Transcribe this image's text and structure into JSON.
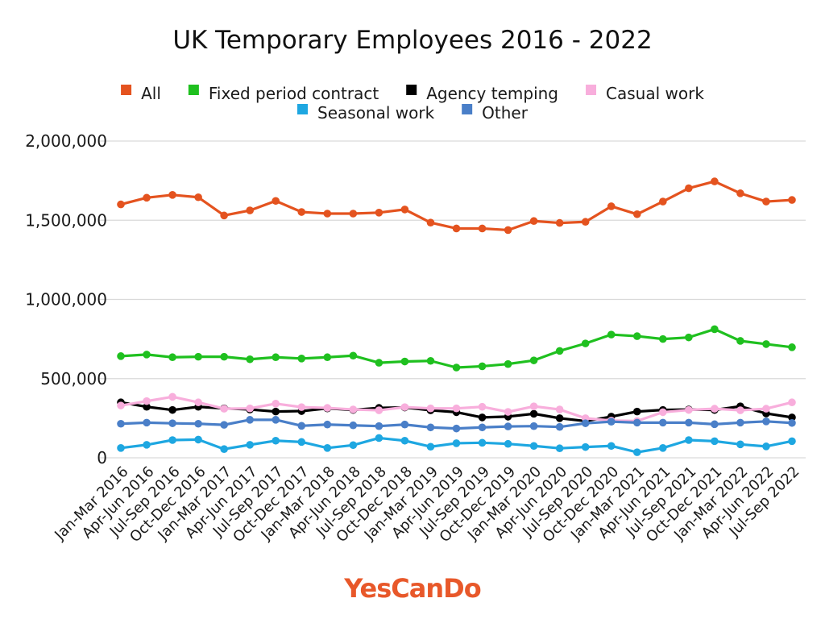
{
  "chart_data": {
    "type": "line",
    "title": "UK Temporary Employees 2016 - 2022",
    "xlabel": "",
    "ylabel": "",
    "ylim": [
      0,
      2000000
    ],
    "yticks": [
      0,
      500000,
      1000000,
      1500000,
      2000000
    ],
    "ytick_labels": [
      "0",
      "500,000",
      "1,000,000",
      "1,500,000",
      "2,000,000"
    ],
    "grid": true,
    "legend_position": "top",
    "categories": [
      "Jan-Mar 2016",
      "Apr-Jun 2016",
      "Jul-Sep 2016",
      "Oct-Dec 2016",
      "Jan-Mar 2017",
      "Apr-Jun 2017",
      "Jul-Sep 2017",
      "Oct-Dec 2017",
      "Jan-Mar 2018",
      "Apr-Jun 2018",
      "Jul-Sep 2018",
      "Oct-Dec 2018",
      "Jan-Mar 2019",
      "Apr-Jun 2019",
      "Jul-Sep 2019",
      "Oct-Dec 2019",
      "Jan-Mar 2020",
      "Apr-Jun 2020",
      "Jul-Sep 2020",
      "Oct-Dec 2020",
      "Jan-Mar 2021",
      "Apr-Jun 2021",
      "Jul-Sep 2021",
      "Oct-Dec 2021",
      "Jan-Mar 2022",
      "Apr-Jun 2022",
      "Jul-Sep 2022"
    ],
    "series": [
      {
        "name": "All",
        "color": "#e4531f",
        "values": [
          1600000,
          1642000,
          1660000,
          1645000,
          1530000,
          1562000,
          1622000,
          1552000,
          1542000,
          1542000,
          1548000,
          1568000,
          1485000,
          1448000,
          1448000,
          1438000,
          1495000,
          1483000,
          1490000,
          1588000,
          1538000,
          1618000,
          1702000,
          1745000,
          1670000,
          1618000,
          1628000
        ]
      },
      {
        "name": "Fixed period contract",
        "color": "#1fc01f",
        "values": [
          642000,
          652000,
          635000,
          638000,
          638000,
          622000,
          635000,
          627000,
          635000,
          645000,
          600000,
          608000,
          612000,
          570000,
          578000,
          592000,
          615000,
          675000,
          722000,
          778000,
          768000,
          750000,
          760000,
          812000,
          738000,
          718000,
          698000
        ]
      },
      {
        "name": "Agency temping",
        "color": "#000000",
        "values": [
          350000,
          322000,
          302000,
          322000,
          312000,
          305000,
          292000,
          295000,
          312000,
          302000,
          315000,
          318000,
          300000,
          288000,
          255000,
          260000,
          278000,
          250000,
          232000,
          260000,
          292000,
          302000,
          305000,
          302000,
          325000,
          280000,
          255000
        ]
      },
      {
        "name": "Casual work",
        "color": "#f8aedc",
        "values": [
          330000,
          358000,
          385000,
          350000,
          310000,
          312000,
          342000,
          320000,
          315000,
          305000,
          300000,
          320000,
          312000,
          312000,
          322000,
          290000,
          325000,
          305000,
          250000,
          235000,
          232000,
          288000,
          302000,
          310000,
          300000,
          310000,
          350000
        ]
      },
      {
        "name": "Seasonal work",
        "color": "#1ea7e1",
        "values": [
          62000,
          82000,
          112000,
          115000,
          55000,
          82000,
          108000,
          100000,
          62000,
          80000,
          125000,
          108000,
          70000,
          92000,
          95000,
          88000,
          75000,
          60000,
          68000,
          75000,
          35000,
          62000,
          112000,
          105000,
          85000,
          72000,
          105000
        ]
      },
      {
        "name": "Other",
        "color": "#4a7fc8",
        "values": [
          215000,
          222000,
          218000,
          215000,
          208000,
          240000,
          240000,
          202000,
          210000,
          205000,
          200000,
          210000,
          192000,
          185000,
          192000,
          198000,
          200000,
          195000,
          218000,
          228000,
          222000,
          222000,
          222000,
          212000,
          222000,
          230000,
          220000
        ]
      }
    ]
  },
  "branding": {
    "logo_text": "YesCanDo",
    "logo_color": "#e8582a"
  }
}
